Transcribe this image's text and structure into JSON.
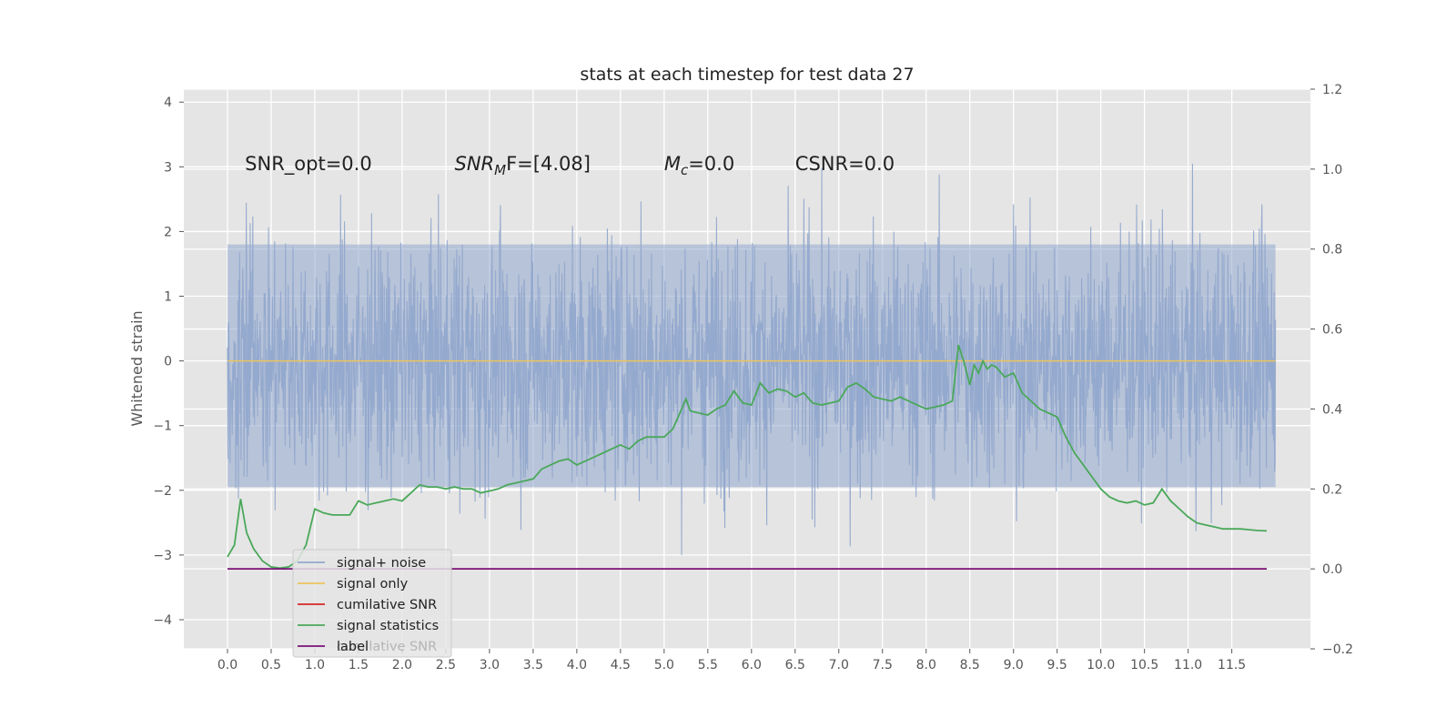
{
  "chart_data": {
    "type": "line",
    "title": "stats at each timestep for test data 27",
    "ylabel": "Whitened strain",
    "xlabel": "",
    "xlim": [
      -0.5,
      12.4
    ],
    "ylim": [
      -4.45,
      4.2
    ],
    "y2lim": [
      -0.2,
      1.2
    ],
    "grid": true,
    "x_ticks": [
      "0.0",
      "0.5",
      "1.0",
      "1.5",
      "2.0",
      "2.5",
      "3.0",
      "3.5",
      "4.0",
      "4.5",
      "5.0",
      "5.5",
      "6.0",
      "6.5",
      "7.0",
      "7.5",
      "8.0",
      "8.5",
      "9.0",
      "9.5",
      "10.0",
      "10.5",
      "11.0",
      "11.5"
    ],
    "y_ticks": [
      "4",
      "3",
      "2",
      "1",
      "0",
      "−1",
      "−2",
      "−3",
      "−4"
    ],
    "y2_ticks": [
      "1.2",
      "1.0",
      "0.8",
      "0.6",
      "0.4",
      "0.2",
      "0.0",
      "−0.2"
    ],
    "annotations": [
      {
        "text": "SNR_opt=0.0",
        "x": 0.2,
        "y": 3.05
      },
      {
        "text": "SNR",
        "sub": "M",
        "rest": "F=[4.08]",
        "x": 2.6,
        "y": 3.05
      },
      {
        "text": "M",
        "sub": "c",
        "rest": "=0.0",
        "x": 5.0,
        "y": 3.05
      },
      {
        "text": "CSNR=0.0",
        "x": 6.5,
        "y": 3.05
      }
    ],
    "noise_range": [
      0.0,
      12.0
    ],
    "signal_only_value": 0.0,
    "series": [
      {
        "name": "signal+ noise",
        "color": "#92a8cd",
        "axis": "left"
      },
      {
        "name": "signal only",
        "color": "#ecc45e",
        "axis": "left",
        "values": [
          0.0,
          0.0
        ]
      },
      {
        "name": "cumilative SNR",
        "color": "#d62728",
        "axis": "right"
      },
      {
        "name": "signal statistics",
        "color": "#4aa85a",
        "axis": "right",
        "x": [
          0.0,
          0.08,
          0.15,
          0.22,
          0.3,
          0.4,
          0.5,
          0.6,
          0.7,
          0.8,
          0.9,
          1.0,
          1.1,
          1.2,
          1.3,
          1.4,
          1.5,
          1.6,
          1.7,
          1.8,
          1.9,
          2.0,
          2.1,
          2.2,
          2.3,
          2.4,
          2.5,
          2.6,
          2.7,
          2.8,
          2.9,
          3.0,
          3.1,
          3.2,
          3.3,
          3.4,
          3.5,
          3.6,
          3.7,
          3.8,
          3.9,
          4.0,
          4.1,
          4.2,
          4.3,
          4.4,
          4.5,
          4.6,
          4.7,
          4.8,
          4.9,
          5.0,
          5.1,
          5.2,
          5.25,
          5.3,
          5.4,
          5.5,
          5.6,
          5.7,
          5.8,
          5.9,
          6.0,
          6.1,
          6.2,
          6.3,
          6.4,
          6.5,
          6.6,
          6.7,
          6.8,
          6.9,
          7.0,
          7.1,
          7.2,
          7.3,
          7.4,
          7.5,
          7.6,
          7.7,
          7.8,
          7.9,
          8.0,
          8.1,
          8.2,
          8.3,
          8.37,
          8.43,
          8.5,
          8.55,
          8.6,
          8.65,
          8.7,
          8.75,
          8.8,
          8.9,
          9.0,
          9.1,
          9.2,
          9.3,
          9.4,
          9.5,
          9.6,
          9.7,
          9.8,
          9.9,
          10.0,
          10.1,
          10.2,
          10.3,
          10.4,
          10.5,
          10.6,
          10.7,
          10.8,
          10.9,
          11.0,
          11.1,
          11.2,
          11.3,
          11.4,
          11.5,
          11.6,
          11.7,
          11.8,
          11.9
        ],
        "values": [
          0.03,
          0.06,
          0.175,
          0.09,
          0.05,
          0.02,
          0.005,
          0.002,
          0.005,
          0.02,
          0.06,
          0.15,
          0.14,
          0.135,
          0.135,
          0.135,
          0.17,
          0.16,
          0.165,
          0.17,
          0.175,
          0.17,
          0.19,
          0.21,
          0.205,
          0.205,
          0.2,
          0.205,
          0.2,
          0.2,
          0.19,
          0.195,
          0.2,
          0.21,
          0.215,
          0.22,
          0.225,
          0.25,
          0.26,
          0.27,
          0.275,
          0.26,
          0.27,
          0.28,
          0.29,
          0.3,
          0.31,
          0.3,
          0.32,
          0.33,
          0.33,
          0.33,
          0.35,
          0.4,
          0.425,
          0.395,
          0.39,
          0.385,
          0.4,
          0.41,
          0.445,
          0.415,
          0.41,
          0.465,
          0.44,
          0.45,
          0.445,
          0.43,
          0.44,
          0.415,
          0.41,
          0.415,
          0.42,
          0.455,
          0.465,
          0.45,
          0.43,
          0.425,
          0.42,
          0.43,
          0.42,
          0.41,
          0.4,
          0.405,
          0.41,
          0.42,
          0.56,
          0.52,
          0.46,
          0.51,
          0.49,
          0.52,
          0.5,
          0.51,
          0.505,
          0.48,
          0.49,
          0.44,
          0.42,
          0.4,
          0.39,
          0.38,
          0.33,
          0.29,
          0.26,
          0.23,
          0.2,
          0.18,
          0.17,
          0.165,
          0.17,
          0.16,
          0.165,
          0.2,
          0.17,
          0.15,
          0.13,
          0.115,
          0.11,
          0.105,
          0.1,
          0.1,
          0.1,
          0.098,
          0.096,
          0.095
        ]
      },
      {
        "name": "label",
        "color": "#7b1177",
        "axis": "right",
        "x": [
          0.0,
          11.9
        ],
        "values": [
          0.0,
          0.0
        ]
      }
    ],
    "legend": {
      "placement": "lower-left",
      "entries": [
        "signal+ noise",
        "signal only",
        "cumilative SNR",
        "signal statistics",
        "label"
      ],
      "ghost_text": "cumilative SNR"
    }
  }
}
